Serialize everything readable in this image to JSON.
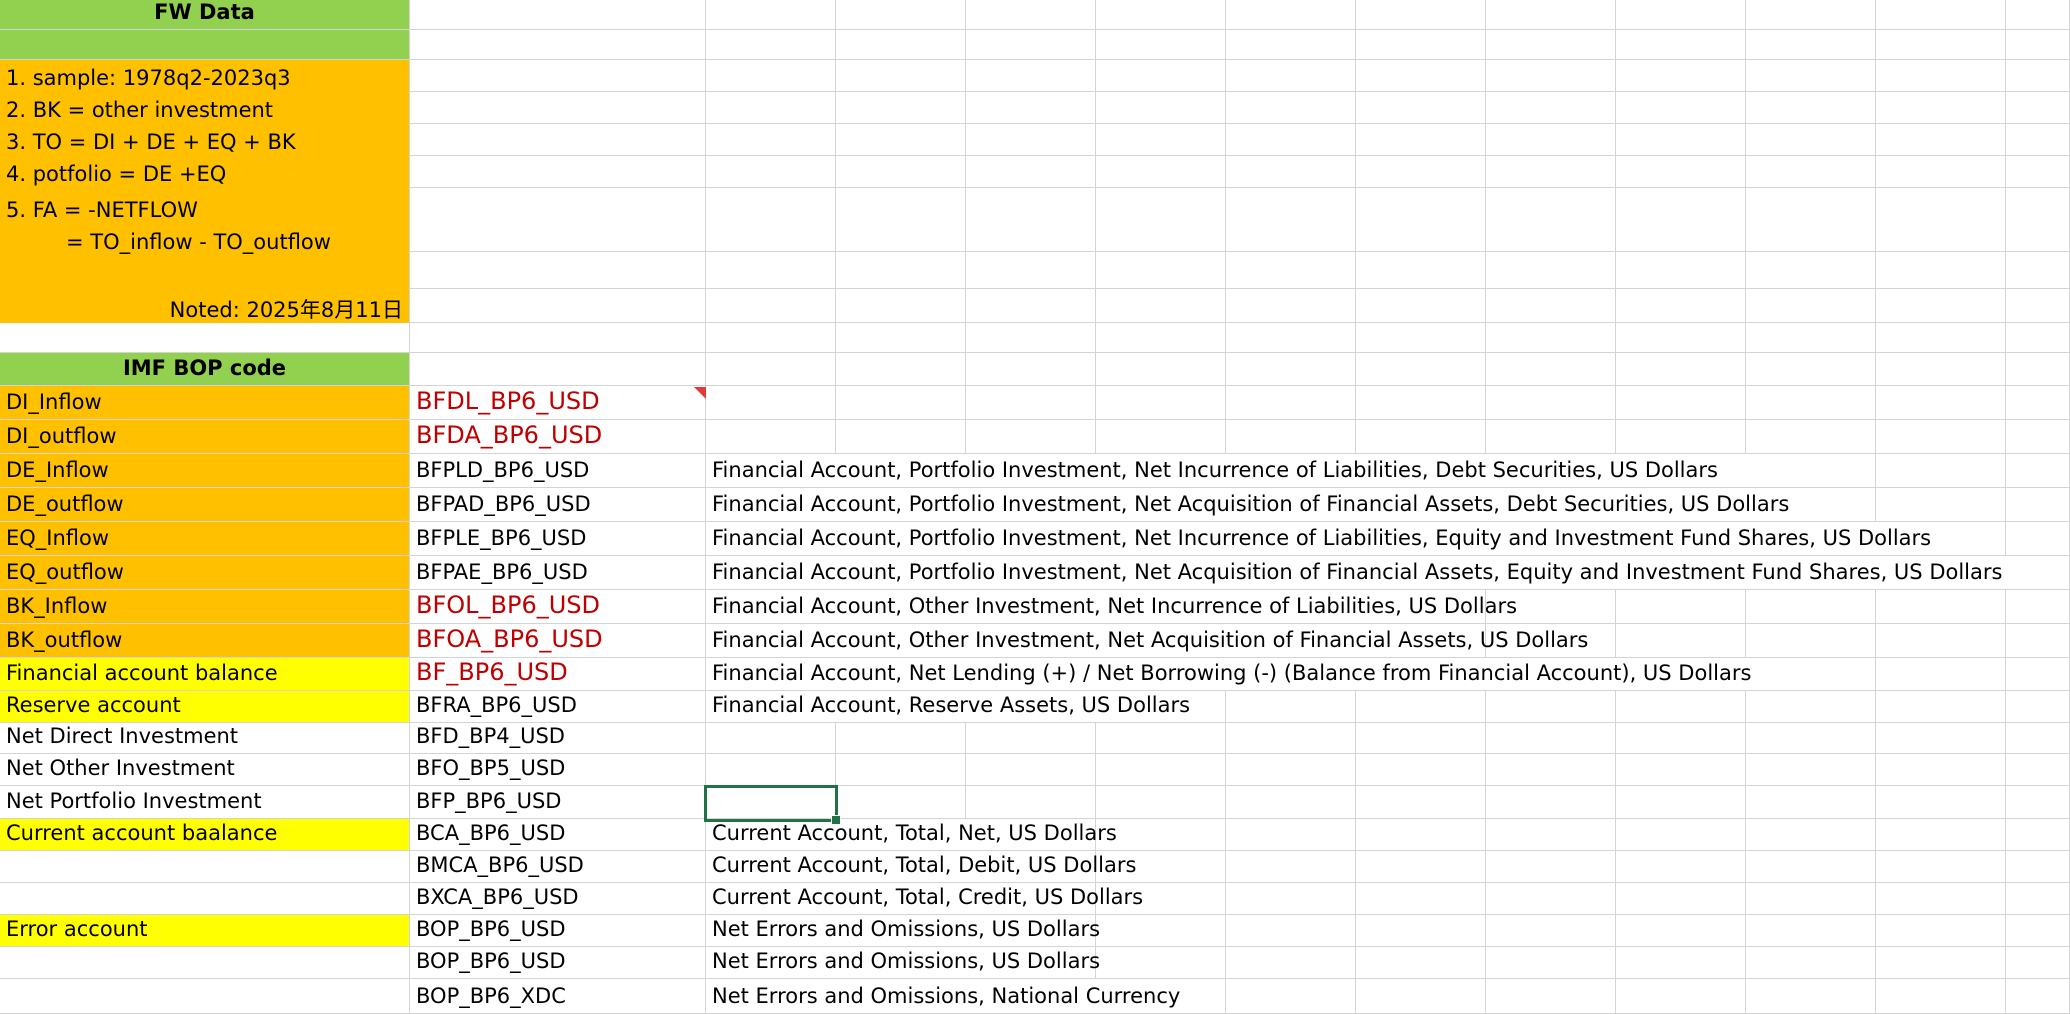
{
  "sheet": {
    "fw_title": "FW Data",
    "notes": [
      "1. sample: 1978q2-2023q3",
      "2. BK = other investment",
      "3. TO = DI + DE + EQ + BK",
      "4. potfolio = DE +EQ",
      "5. FA = -NETFLOW",
      "= TO_inflow - TO_outflow"
    ],
    "noted": "Noted: 2025年8月11日",
    "imf_title": "IMF BOP code",
    "rows": [
      {
        "label": "DI_Inflow",
        "code": "BFDL_BP6_USD",
        "desc": ""
      },
      {
        "label": "DI_outflow",
        "code": "BFDA_BP6_USD",
        "desc": ""
      },
      {
        "label": "DE_Inflow",
        "code": "BFPLD_BP6_USD",
        "desc": "Financial Account, Portfolio Investment, Net Incurrence of Liabilities, Debt Securities, US Dollars"
      },
      {
        "label": "DE_outflow",
        "code": "BFPAD_BP6_USD",
        "desc": "Financial Account, Portfolio Investment, Net Acquisition of Financial Assets, Debt Securities, US Dollars"
      },
      {
        "label": "EQ_Inflow",
        "code": "BFPLE_BP6_USD",
        "desc": "Financial Account, Portfolio Investment, Net Incurrence of Liabilities, Equity and Investment Fund Shares, US Dollars"
      },
      {
        "label": "EQ_outflow",
        "code": "BFPAE_BP6_USD",
        "desc": "Financial Account, Portfolio Investment, Net Acquisition of Financial Assets, Equity and Investment Fund Shares, US Dollars"
      },
      {
        "label": "BK_Inflow",
        "code": "BFOL_BP6_USD",
        "desc": "Financial Account, Other Investment, Net Incurrence of Liabilities, US Dollars"
      },
      {
        "label": "BK_outflow",
        "code": "BFOA_BP6_USD",
        "desc": "Financial Account, Other Investment, Net Acquisition of Financial Assets, US Dollars"
      },
      {
        "label": "Financial account balance",
        "code": "BF_BP6_USD",
        "desc": "Financial Account, Net Lending (+) / Net Borrowing (-) (Balance from Financial Account), US Dollars"
      },
      {
        "label": "Reserve account",
        "code": "BFRA_BP6_USD",
        "desc": "Financial Account, Reserve Assets, US Dollars"
      },
      {
        "label": "Net Direct Investment",
        "code": "BFD_BP4_USD",
        "desc": ""
      },
      {
        "label": "Net Other Investment",
        "code": "BFO_BP5_USD",
        "desc": ""
      },
      {
        "label": "Net Portfolio Investment",
        "code": "BFP_BP6_USD",
        "desc": ""
      },
      {
        "label": "Current account baalance",
        "code": "BCA_BP6_USD",
        "desc": "Current Account, Total, Net, US Dollars"
      },
      {
        "label": "",
        "code": "BMCA_BP6_USD",
        "desc": "Current Account, Total, Debit, US Dollars"
      },
      {
        "label": "",
        "code": "BXCA_BP6_USD",
        "desc": "Current Account, Total, Credit, US Dollars"
      },
      {
        "label": "Error account",
        "code": "BOP_BP6_USD",
        "desc": "Net Errors and Omissions, US Dollars"
      },
      {
        "label": "",
        "code": "BOP_BP6_USD",
        "desc": "Net Errors and Omissions, US Dollars"
      },
      {
        "label": "",
        "code": "BOP_BP6_XDC",
        "desc": "Net Errors and Omissions, National Currency"
      }
    ]
  },
  "colors": {
    "header_green": "#92d050",
    "label_orange": "#ffc000",
    "label_yellow": "#ffff00",
    "red_code": "#c00000",
    "selection": "#217346",
    "gridline": "#d4d4d4"
  }
}
